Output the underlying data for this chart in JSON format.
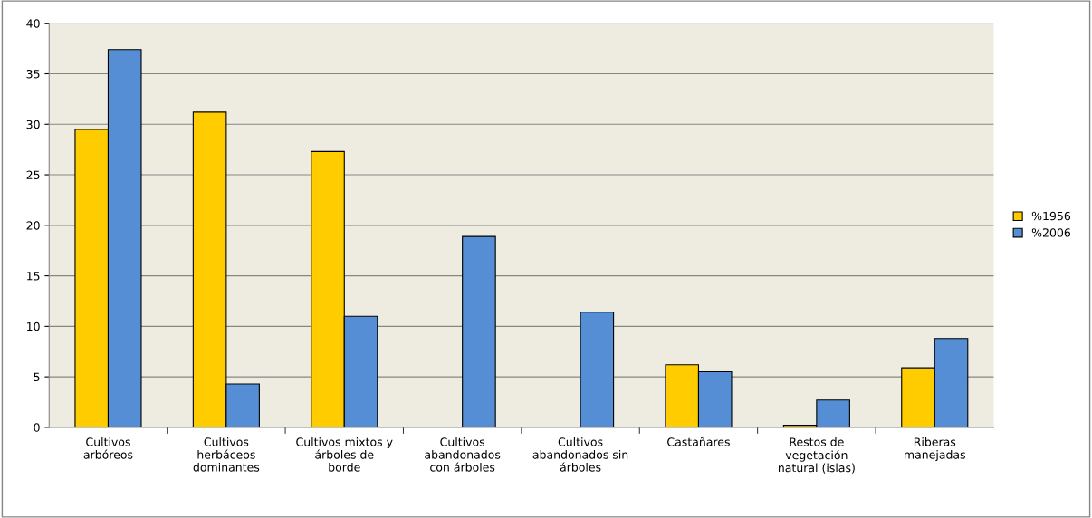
{
  "chart_data": {
    "type": "bar",
    "categories": [
      "Cultivos\narbóreos",
      "Cultivos\nherbáceos\ndominantes",
      "Cultivos mixtos y\nárboles de\nborde",
      "Cultivos\nabandonados\ncon árboles",
      "Cultivos\nabandonados sin\nárboles",
      "Castañares",
      "Restos de\nvegetación\nnatural (islas)",
      "Riberas\nmanejadas"
    ],
    "series": [
      {
        "name": "%1956",
        "color": "#ffcc00",
        "values": [
          29.5,
          31.2,
          27.3,
          null,
          null,
          6.2,
          0.2,
          5.9
        ]
      },
      {
        "name": "%2006",
        "color": "#558ed5",
        "values": [
          37.4,
          4.3,
          11.0,
          18.9,
          11.4,
          5.5,
          2.7,
          8.8
        ]
      }
    ],
    "ylim": [
      0,
      40
    ],
    "yticks": [
      0,
      5,
      10,
      15,
      20,
      25,
      30,
      35,
      40
    ],
    "grid": "y",
    "legend": "right"
  }
}
